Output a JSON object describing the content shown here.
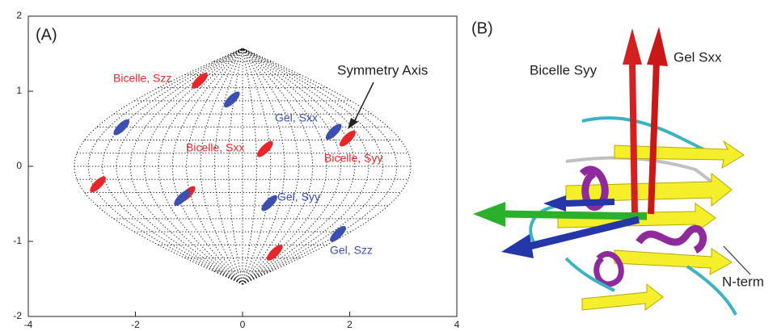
{
  "chart_data": {
    "type": "scatter",
    "title": "(A)",
    "xlim": [
      -4,
      4
    ],
    "ylim": [
      -2,
      2
    ],
    "xticks": [
      -4,
      -2,
      0,
      2,
      4
    ],
    "yticks": [
      -2,
      -1,
      0,
      1,
      2
    ],
    "series": [
      {
        "color": "#e8262a",
        "x": [
          -0.8,
          0.42,
          1.96,
          -2.7,
          -1.03,
          0.6
        ],
        "y": [
          1.14,
          0.23,
          0.37,
          -0.24,
          -0.37,
          -1.15
        ]
      },
      {
        "color": "#3a4fb0",
        "x": [
          -0.2,
          -2.26,
          1.7,
          -1.13,
          0.5,
          1.78
        ],
        "y": [
          0.89,
          0.52,
          0.46,
          -0.42,
          -0.49,
          -0.9
        ]
      }
    ],
    "annotations": [
      {
        "text": "Bicelle, Szz",
        "color": "#e8262a"
      },
      {
        "text": "Symmetry Axis",
        "color": "#222222"
      },
      {
        "text": "Gel, Sxx",
        "color": "#3a4fb0"
      },
      {
        "text": "Bicelle, Sxx",
        "color": "#e8262a"
      },
      {
        "text": "Bicelle, Syy",
        "color": "#e8262a"
      },
      {
        "text": "Gel, Syy",
        "color": "#3a4fb0"
      },
      {
        "text": "Gel, Szz",
        "color": "#3a4fb0"
      }
    ]
  },
  "panel_b": {
    "label": "(B)",
    "texts": [
      "Bicelle Syy",
      "Gel Sxx",
      "N-term"
    ]
  }
}
